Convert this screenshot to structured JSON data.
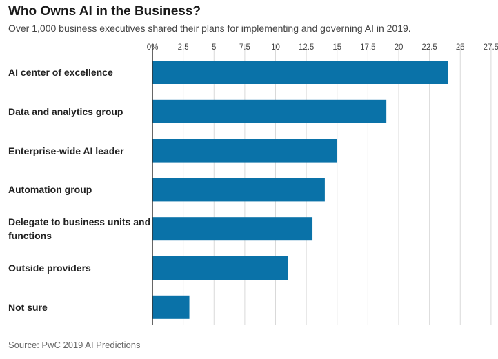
{
  "title": "Who Owns AI in the Business?",
  "subtitle": "Over 1,000 business executives shared their plans for implementing and governing AI in 2019.",
  "source": "Source: PwC 2019 AI Predictions",
  "colors": {
    "bar": "#0a72a8",
    "grid": "#d9d9d9",
    "axis": "#333333"
  },
  "chart_data": {
    "type": "bar",
    "orientation": "horizontal",
    "categories": [
      "AI center of excellence",
      "Data and analytics group",
      "Enterprise-wide AI leader",
      "Automation group",
      "Delegate to business units and functions",
      "Outside providers",
      "Not sure"
    ],
    "values": [
      24,
      19,
      15,
      14,
      13,
      11,
      3
    ],
    "xlim": [
      0,
      27.5
    ],
    "ticks": [
      0,
      2.5,
      5,
      7.5,
      10,
      12.5,
      15,
      17.5,
      20,
      22.5,
      25,
      27.5
    ],
    "tick_labels": [
      "0%",
      "2.5",
      "5",
      "7.5",
      "10",
      "12.5",
      "15",
      "17.5",
      "20",
      "22.5",
      "25",
      "27.5"
    ],
    "xlabel": "",
    "ylabel": "",
    "grid": true,
    "tick_position": "top"
  }
}
